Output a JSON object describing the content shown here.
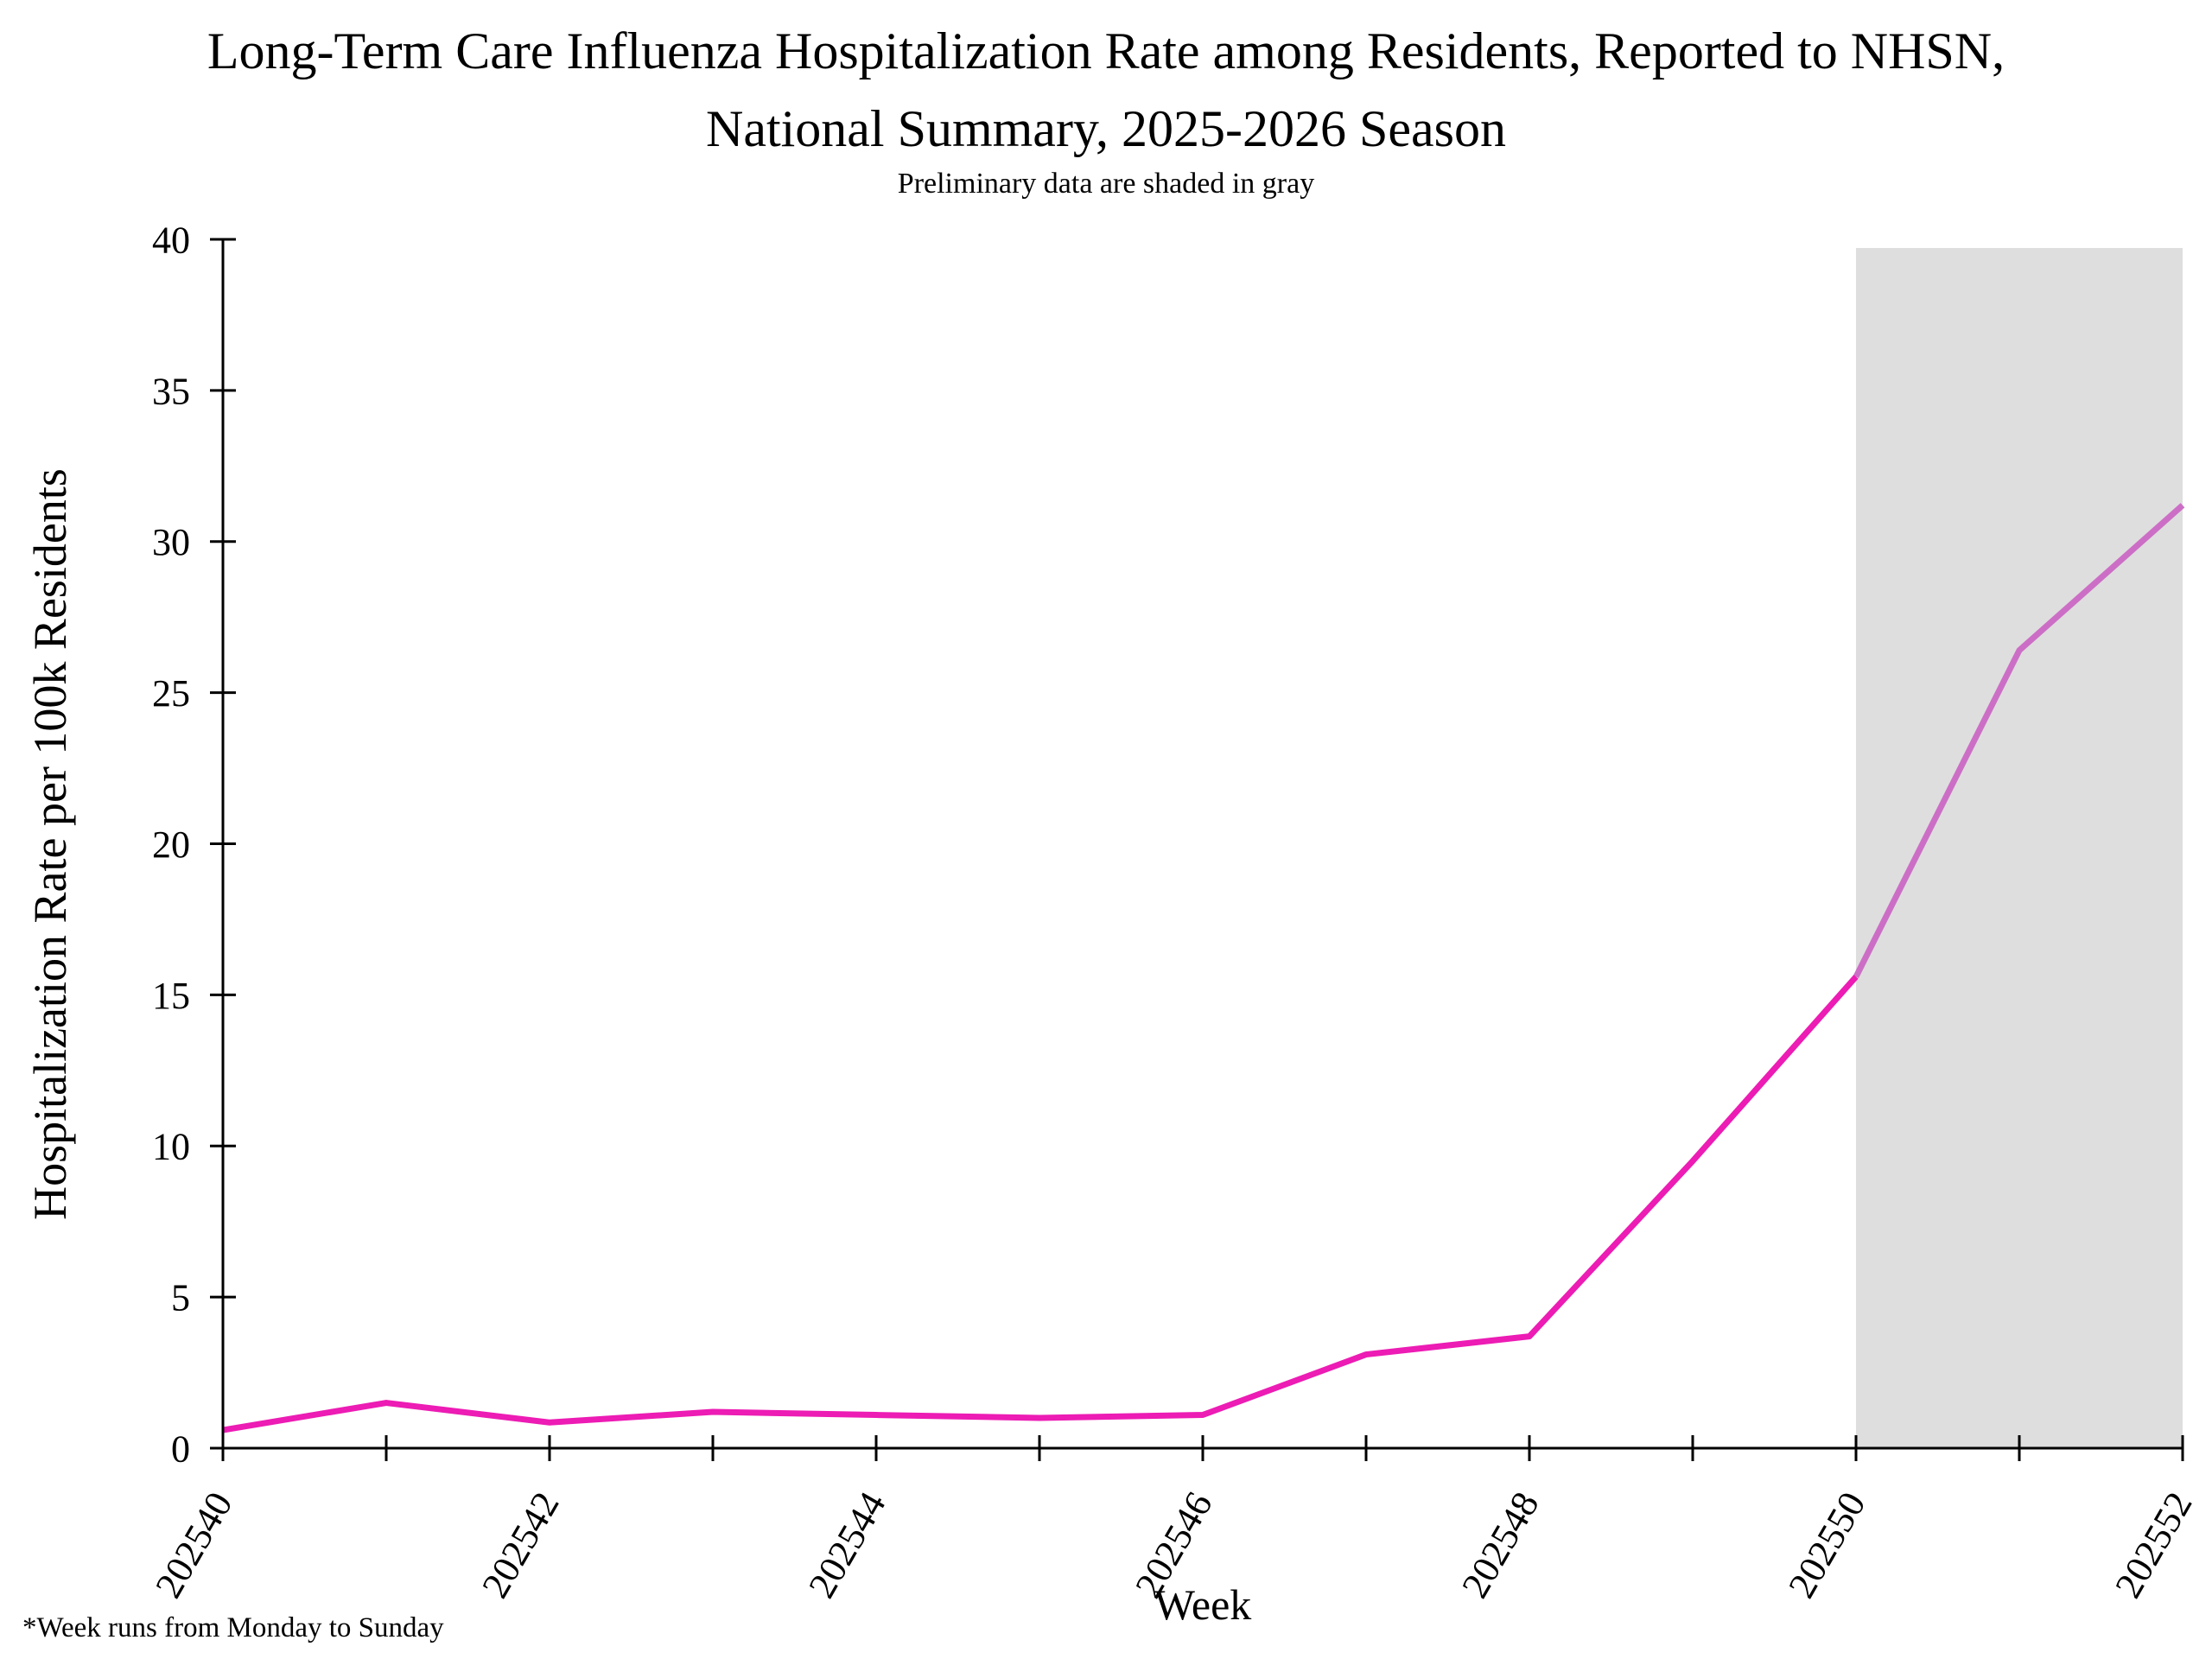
{
  "header": {
    "title_line1": "Long-Term Care Influenza Hospitalization Rate among Residents, Reported to NHSN,",
    "title_line2": "National Summary, 2025-2026 Season",
    "subtitle": "Preliminary data are shaded in gray"
  },
  "footnote": "*Week runs from Monday to Sunday",
  "colors": {
    "line": "#EC1CB4",
    "line_preliminary": "#CC6EC6",
    "preliminary_shade": "#DEDEDE",
    "axis": "#000000",
    "text": "#000000"
  },
  "chart_data": {
    "type": "line",
    "title": "Long-Term Care Influenza Hospitalization Rate among Residents, Reported to NHSN, National Summary, 2025-2026 Season",
    "subtitle": "Preliminary data are shaded in gray",
    "xlabel": "Week",
    "ylabel": "Hospitalization Rate per 100k Residents",
    "series": [
      {
        "name": "Influenza hospitalization rate among LTC residents",
        "x": [
          202540,
          202541,
          202542,
          202543,
          202544,
          202545,
          202546,
          202547,
          202548,
          202549,
          202550,
          202551,
          202552
        ],
        "values": [
          0.6,
          1.5,
          0.85,
          1.2,
          1.1,
          1.0,
          1.1,
          3.1,
          3.7,
          9.5,
          15.6,
          26.4,
          31.2
        ]
      }
    ],
    "x_ticks": [
      202540,
      202541,
      202542,
      202543,
      202544,
      202545,
      202546,
      202547,
      202548,
      202549,
      202550,
      202551,
      202552
    ],
    "x_tick_labels": [
      "202540",
      "202542",
      "202544",
      "202546",
      "202548",
      "202550",
      "202552"
    ],
    "y_ticks": [
      0,
      5,
      10,
      15,
      20,
      25,
      30,
      35,
      40
    ],
    "ylim": [
      0,
      40
    ],
    "xlim": [
      202540,
      202552
    ],
    "preliminary_start": 202550,
    "preliminary_note": "Weeks 202550-202552 are preliminary (gray shaded)",
    "grid": false,
    "legend": "none",
    "footnote": "*Week runs from Monday to Sunday"
  }
}
